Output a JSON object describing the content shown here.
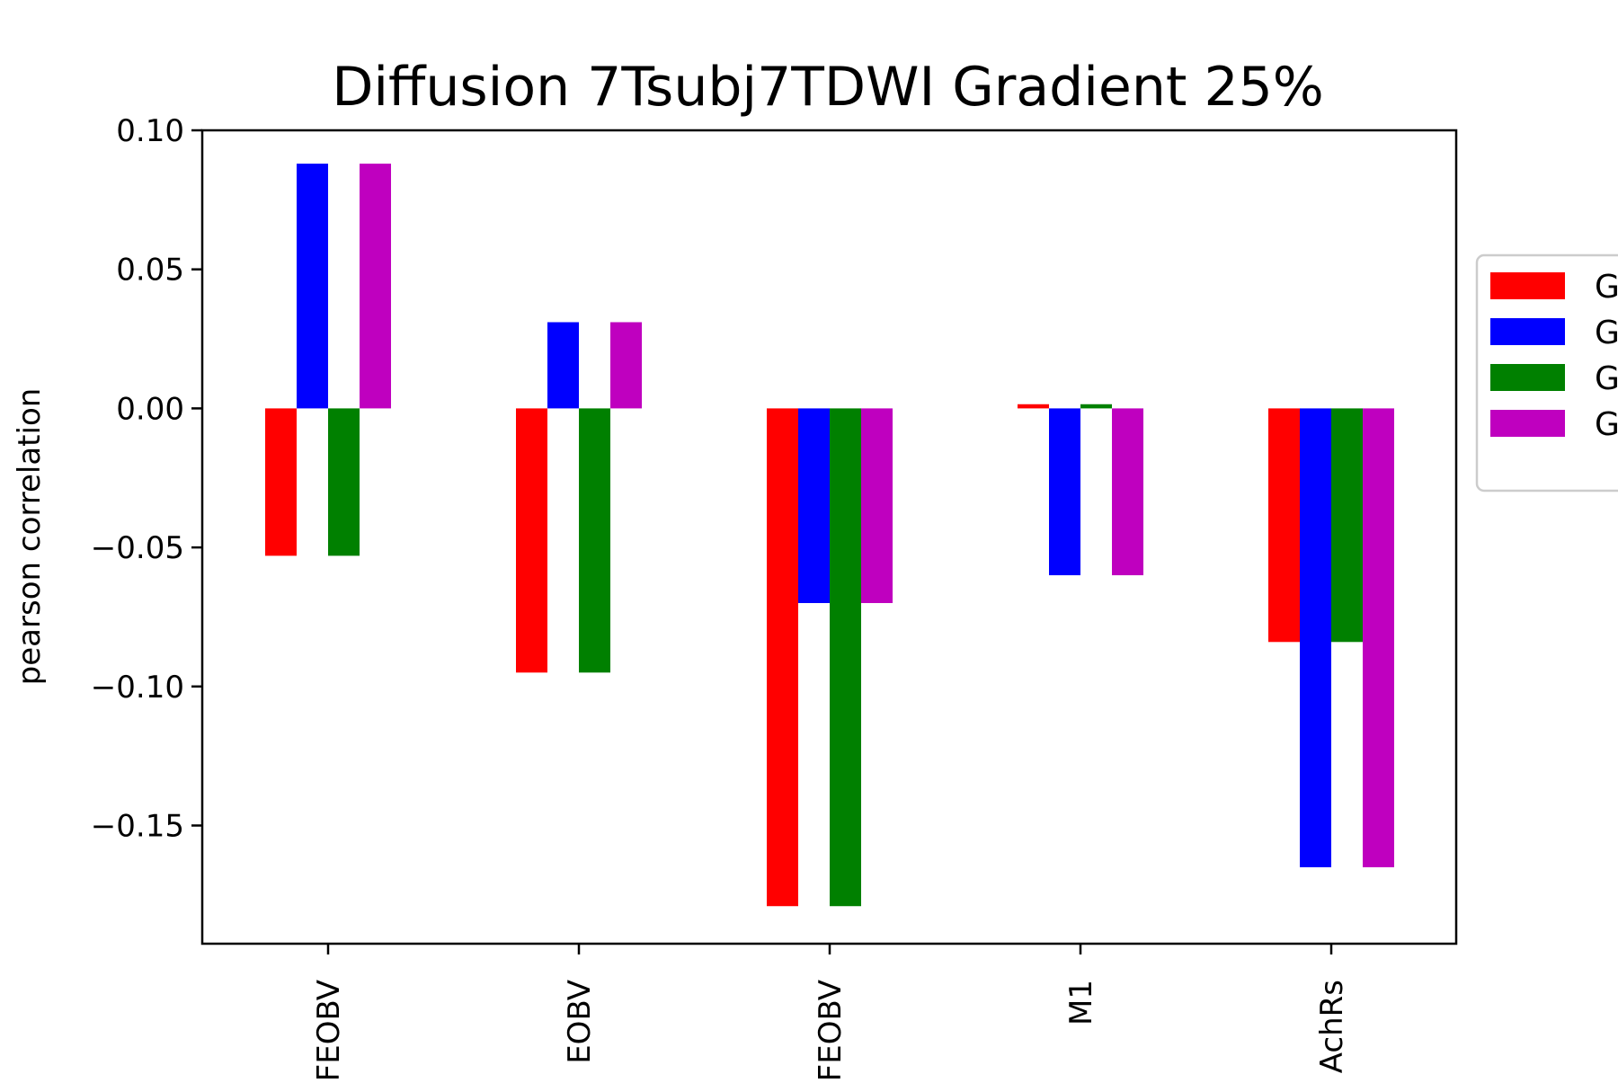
{
  "chart_data": {
    "type": "bar",
    "title": "Diffusion 7Tsubj7TDWI Gradient 25%",
    "xlabel": "",
    "ylabel": "pearson correlation",
    "ylim": [
      -0.1925,
      0.1
    ],
    "yticks": [
      0.1,
      0.05,
      0.0,
      -0.05,
      -0.1,
      -0.15
    ],
    "ytick_labels": [
      "0.10",
      "0.05",
      "0.00",
      "−0.05",
      "−0.10",
      "−0.15"
    ],
    "categories": [
      "FEOBV",
      "EOBV",
      "FEOBV",
      "M1",
      "AchRs"
    ],
    "series": [
      {
        "name": "G",
        "color": "#ff0000",
        "values": [
          -0.053,
          -0.095,
          -0.179,
          0.0015,
          -0.084
        ]
      },
      {
        "name": "G",
        "color": "#0000ff",
        "values": [
          0.088,
          0.031,
          -0.07,
          -0.06,
          -0.165
        ]
      },
      {
        "name": "G",
        "color": "#008000",
        "values": [
          -0.053,
          -0.095,
          -0.179,
          0.0015,
          -0.084
        ]
      },
      {
        "name": "G",
        "color": "#bf00bf",
        "values": [
          0.088,
          0.031,
          -0.07,
          -0.06,
          -0.165
        ]
      }
    ],
    "grid": false,
    "legend_position": "right, outside plot"
  }
}
